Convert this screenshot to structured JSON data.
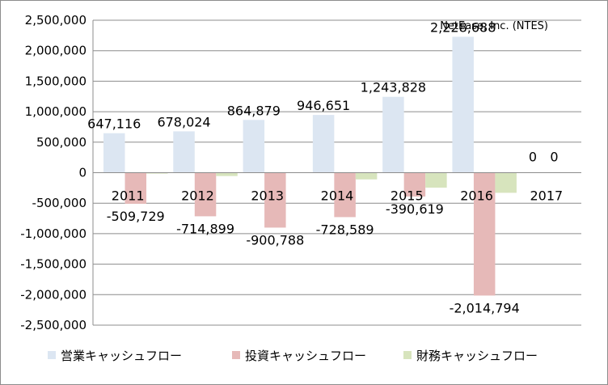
{
  "chart_data": {
    "type": "bar",
    "title": "NetEase, Inc. (NTES)",
    "categories": [
      "2011",
      "2012",
      "2013",
      "2014",
      "2015",
      "2016",
      "2017"
    ],
    "series": [
      {
        "name": "営業キャッシュフロー",
        "color": "#dce6f2",
        "values": [
          647116,
          678024,
          864879,
          946651,
          1243828,
          2228688,
          0
        ],
        "labels": [
          "647,116",
          "678,024",
          "864,879",
          "946,651",
          "1,243,828",
          "2,228,688",
          "0"
        ]
      },
      {
        "name": "投資キャッシュフロー",
        "color": "#e6b9b8",
        "values": [
          -509729,
          -714899,
          -900788,
          -728589,
          -390619,
          -2014794,
          0
        ],
        "labels": [
          "-509,729",
          "-714,899",
          "-900,788",
          "-728,589",
          "-390,619",
          "-2,014,794",
          "0"
        ]
      },
      {
        "name": "財務キャッシュフロー",
        "color": "#d7e4bd",
        "values": [
          -15000,
          -55000,
          0,
          -110000,
          -245000,
          -330000,
          0
        ],
        "labels": []
      }
    ],
    "ylim": [
      -2500000,
      2500000
    ],
    "yticks": [
      2500000,
      2000000,
      1500000,
      1000000,
      500000,
      0,
      -500000,
      -1000000,
      -1500000,
      -2000000,
      -2500000
    ],
    "ytick_labels": [
      "2,500,000",
      "2,000,000",
      "1,500,000",
      "1,000,000",
      "500,000",
      "0",
      "-500,000",
      "-1,000,000",
      "-1,500,000",
      "-2,000,000",
      "-2,500,000"
    ],
    "grid": true,
    "legend_position": "bottom"
  }
}
